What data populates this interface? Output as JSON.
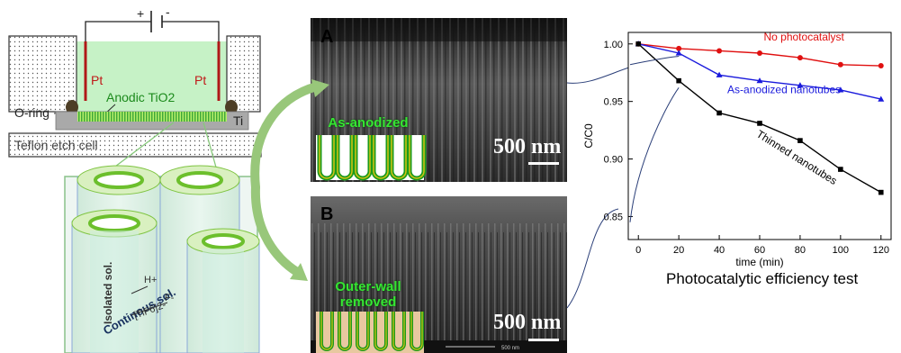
{
  "schematic": {
    "pt_left": "Pt",
    "pt_right": "Pt",
    "anodic_tio2": "Anodic TiO2",
    "ti": "Ti",
    "o_ring": "O-ring",
    "teflon": "Teflon etch cell",
    "battery_plus": "+",
    "battery_minus": "-"
  },
  "tubes": {
    "isolated": "Isolated sol.",
    "continuous": "Continous sol.",
    "h_plus": "H+",
    "tif6": "[TiF6]2-",
    "f_minus": "F-"
  },
  "sem": {
    "panel_a": "A",
    "panel_b": "B",
    "label_a": "As-anodized",
    "label_b_line1": "Outer-wall",
    "label_b_line2": "removed",
    "scale_a": "500 nm",
    "scale_b": "500 nm",
    "small_scale": "500 nm"
  },
  "chart_caption": "Photocatalytic efficiency test",
  "chart_data": {
    "type": "line",
    "xlabel": "time (min)",
    "ylabel": "C/C0",
    "xlim": [
      -5,
      125
    ],
    "ylim": [
      0.83,
      1.01
    ],
    "xticks": [
      0,
      20,
      40,
      60,
      80,
      100,
      120
    ],
    "yticks": [
      0.85,
      0.9,
      0.95,
      1.0
    ],
    "series": [
      {
        "name": "No photocatalyst",
        "color": "#e01010",
        "marker": "circle",
        "x": [
          0,
          20,
          40,
          60,
          80,
          100,
          120
        ],
        "y": [
          1.0,
          0.996,
          0.994,
          0.992,
          0.988,
          0.982,
          0.981
        ]
      },
      {
        "name": "As-anodized nanotubes",
        "color": "#1a1adc",
        "marker": "triangle",
        "x": [
          0,
          20,
          40,
          60,
          80,
          100,
          120
        ],
        "y": [
          1.0,
          0.992,
          0.973,
          0.968,
          0.964,
          0.96,
          0.952
        ]
      },
      {
        "name": "Thinned nanotubes",
        "color": "#000000",
        "marker": "square",
        "x": [
          0,
          20,
          40,
          60,
          80,
          100,
          120
        ],
        "y": [
          1.0,
          0.968,
          0.94,
          0.931,
          0.916,
          0.891,
          0.871
        ]
      }
    ]
  }
}
